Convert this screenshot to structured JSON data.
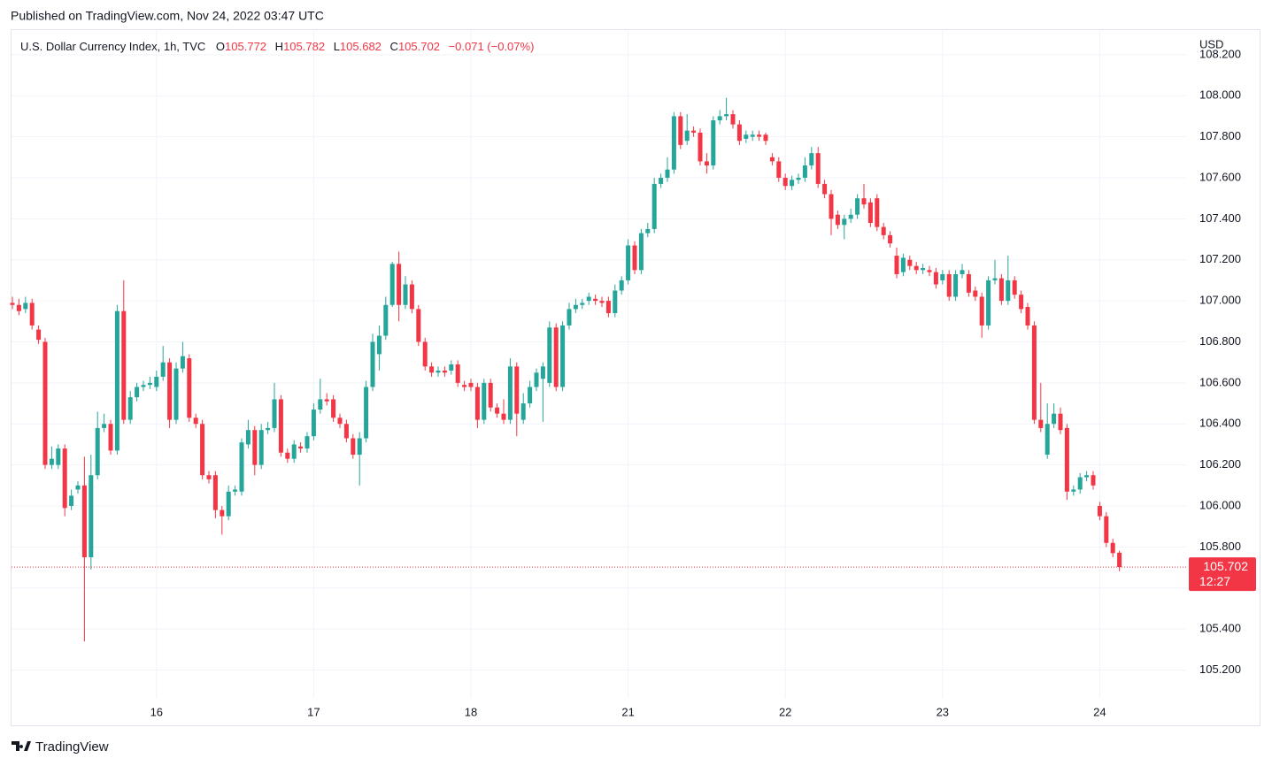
{
  "published": "Published on TradingView.com, Nov 24, 2022 03:47 UTC",
  "brand": "TradingView",
  "chart_data": {
    "type": "candlestick",
    "title": "U.S. Dollar Currency Index, 1h, TVC",
    "legend_fields": [
      {
        "label": "O",
        "value": 105.772
      },
      {
        "label": "H",
        "value": 105.782
      },
      {
        "label": "L",
        "value": 105.682
      },
      {
        "label": "C",
        "value": 105.702
      }
    ],
    "change": "−0.071 (−0.07%)",
    "currency": "USD",
    "last_price": 105.702,
    "countdown": "12:27",
    "up_color": "#26a69a",
    "down_color": "#f23645",
    "grid": true,
    "ylim": [
      105.06,
      108.32
    ],
    "yticks": [
      {
        "value": 105.2,
        "label": "105.200"
      },
      {
        "value": 105.4,
        "label": "105.400"
      },
      {
        "value": 105.6,
        "label": "105.600"
      },
      {
        "value": 105.8,
        "label": "105.800"
      },
      {
        "value": 106.0,
        "label": "106.000"
      },
      {
        "value": 106.2,
        "label": "106.200"
      },
      {
        "value": 106.4,
        "label": "106.400"
      },
      {
        "value": 106.6,
        "label": "106.600"
      },
      {
        "value": 106.8,
        "label": "106.800"
      },
      {
        "value": 107.0,
        "label": "107.000"
      },
      {
        "value": 107.2,
        "label": "107.200"
      },
      {
        "value": 107.4,
        "label": "107.400"
      },
      {
        "value": 107.6,
        "label": "107.600"
      },
      {
        "value": 107.8,
        "label": "107.800"
      },
      {
        "value": 108.0,
        "label": "108.000"
      },
      {
        "value": 108.2,
        "label": "108.200"
      }
    ],
    "categories": [
      null,
      null,
      null,
      null,
      null,
      null,
      null,
      null,
      null,
      null,
      null,
      null,
      null,
      null,
      null,
      null,
      null,
      null,
      null,
      null,
      null,
      null,
      "16",
      null,
      null,
      null,
      null,
      null,
      null,
      null,
      null,
      null,
      null,
      null,
      null,
      null,
      null,
      null,
      null,
      null,
      null,
      null,
      null,
      null,
      null,
      null,
      "17",
      null,
      null,
      null,
      null,
      null,
      null,
      null,
      null,
      null,
      null,
      null,
      null,
      null,
      null,
      null,
      null,
      null,
      null,
      null,
      null,
      null,
      null,
      null,
      "18",
      null,
      null,
      null,
      null,
      null,
      null,
      null,
      null,
      null,
      null,
      null,
      null,
      null,
      null,
      null,
      null,
      null,
      null,
      null,
      null,
      null,
      null,
      null,
      "21",
      null,
      null,
      null,
      null,
      null,
      null,
      null,
      null,
      null,
      null,
      null,
      null,
      null,
      null,
      null,
      null,
      null,
      null,
      null,
      null,
      null,
      null,
      null,
      "22",
      null,
      null,
      null,
      null,
      null,
      null,
      null,
      null,
      null,
      null,
      null,
      null,
      null,
      null,
      null,
      null,
      null,
      null,
      null,
      null,
      null,
      null,
      null,
      "23",
      null,
      null,
      null,
      null,
      null,
      null,
      null,
      null,
      null,
      null,
      null,
      null,
      null,
      null,
      null,
      null,
      null,
      null,
      null,
      null,
      null,
      null,
      null,
      "24",
      null,
      null,
      null
    ],
    "open": [
      106.99,
      106.98,
      106.96,
      106.99,
      106.86,
      106.8,
      106.2,
      106.2,
      106.28,
      106,
      106.08,
      106.1,
      105.75,
      106.15,
      106.38,
      106.4,
      106.27,
      106.95,
      106.42,
      106.53,
      106.58,
      106.59,
      106.58,
      106.63,
      106.7,
      106.42,
      106.67,
      106.72,
      106.43,
      106.4,
      106.15,
      106.15,
      105.98,
      105.95,
      106.07,
      106.07,
      106.3,
      106.37,
      106.2,
      106.37,
      106.38,
      106.52,
      106.26,
      106.23,
      106.29,
      106.28,
      106.34,
      106.47,
      106.52,
      106.52,
      106.43,
      106.4,
      106.33,
      106.25,
      106.33,
      106.58,
      106.74,
      106.83,
      106.98,
      107.18,
      106.98,
      107.08,
      106.96,
      106.8,
      106.68,
      106.65,
      106.66,
      106.66,
      106.69,
      106.59,
      106.6,
      106.58,
      106.42,
      106.6,
      106.48,
      106.45,
      106.42,
      106.68,
      106.42,
      106.5,
      106.58,
      106.62,
      106.6,
      106.87,
      106.58,
      106.88,
      106.96,
      106.98,
      107,
      107.01,
      107,
      107,
      106.94,
      107.05,
      107.1,
      107.27,
      107.15,
      107.33,
      107.35,
      107.57,
      107.6,
      107.64,
      107.9,
      107.78,
      107.83,
      107.82,
      107.68,
      107.66,
      107.88,
      107.9,
      107.91,
      107.86,
      107.79,
      107.8,
      107.81,
      107.81,
      107.7,
      107.68,
      107.6,
      107.56,
      107.59,
      107.6,
      107.66,
      107.72,
      107.57,
      107.52,
      107.42,
      107.37,
      107.4,
      107.42,
      107.5,
      107.48,
      107.5,
      107.36,
      107.32,
      107.22,
      107.14,
      107.2,
      107.17,
      107.15,
      107.15,
      107.14,
      107.1,
      107.13,
      107.02,
      107.13,
      107.13,
      107.05,
      107.02,
      106.88,
      107.1,
      107.11,
      107,
      107.1,
      107.03,
      106.97,
      106.88,
      106.42,
      106.25,
      106.4,
      106.45,
      106.38,
      106.07,
      106.08,
      106.14,
      106.15,
      106,
      105.95,
      105.82,
      105.772
    ],
    "high": [
      107.02,
      107.01,
      107.02,
      107.01,
      106.88,
      106.82,
      106.29,
      106.3,
      106.3,
      106.08,
      106.12,
      106.24,
      106.25,
      106.46,
      106.45,
      106.42,
      106.98,
      107.1,
      106.56,
      106.6,
      106.61,
      106.63,
      106.66,
      106.78,
      106.72,
      106.7,
      106.8,
      106.74,
      106.45,
      106.42,
      106.17,
      106.17,
      106,
      106.1,
      106.1,
      106.33,
      106.42,
      106.39,
      106.4,
      106.41,
      106.6,
      106.54,
      106.28,
      106.32,
      106.31,
      106.36,
      106.5,
      106.62,
      106.55,
      106.54,
      106.45,
      106.42,
      106.35,
      106.36,
      106.61,
      106.84,
      106.88,
      107.02,
      107.19,
      107.24,
      107.12,
      107.1,
      106.98,
      106.82,
      106.7,
      106.68,
      106.68,
      106.71,
      106.71,
      106.61,
      106.62,
      106.6,
      106.62,
      106.62,
      106.5,
      106.52,
      106.72,
      106.7,
      106.55,
      106.61,
      106.67,
      106.7,
      106.9,
      106.89,
      106.9,
      106.99,
      107.01,
      107.01,
      107.04,
      107.03,
      107.02,
      107.02,
      107.08,
      107.12,
      107.3,
      107.29,
      107.35,
      107.38,
      107.6,
      107.62,
      107.7,
      107.92,
      107.92,
      107.91,
      107.85,
      107.84,
      107.72,
      107.9,
      107.93,
      107.99,
      107.93,
      107.88,
      107.83,
      107.83,
      107.83,
      107.82,
      107.72,
      107.7,
      107.62,
      107.61,
      107.62,
      107.7,
      107.75,
      107.75,
      107.59,
      107.54,
      107.44,
      107.42,
      107.45,
      107.52,
      107.57,
      107.5,
      107.52,
      107.38,
      107.34,
      107.26,
      107.23,
      107.22,
      107.19,
      107.18,
      107.17,
      107.16,
      107.15,
      107.15,
      107.15,
      107.18,
      107.15,
      107.07,
      107.04,
      107.12,
      107.2,
      107.13,
      107.22,
      107.12,
      107.05,
      106.99,
      106.9,
      106.6,
      106.5,
      106.5,
      106.48,
      106.4,
      106.1,
      106.16,
      106.17,
      106.17,
      106.02,
      105.97,
      105.84,
      105.782
    ],
    "low": [
      106.96,
      106.93,
      106.94,
      106.86,
      106.79,
      106.18,
      106.18,
      106.18,
      105.95,
      105.98,
      106.06,
      105.34,
      105.69,
      106.13,
      106.36,
      106.25,
      106.25,
      106.4,
      106.4,
      106.51,
      106.56,
      106.57,
      106.56,
      106.61,
      106.38,
      106.4,
      106.65,
      106.41,
      106.38,
      106.13,
      106.11,
      105.94,
      105.86,
      105.93,
      106.05,
      106.05,
      106.28,
      106.15,
      106.18,
      106.35,
      106.36,
      106.24,
      106.21,
      106.21,
      106.26,
      106.26,
      106.32,
      106.45,
      106.49,
      106.41,
      106.38,
      106.31,
      106.23,
      106.1,
      106.31,
      106.56,
      106.66,
      106.81,
      106.97,
      106.9,
      106.96,
      106.94,
      106.78,
      106.66,
      106.63,
      106.63,
      106.63,
      106.64,
      106.58,
      106.56,
      106.56,
      106.38,
      106.4,
      106.46,
      106.43,
      106.4,
      106.4,
      106.34,
      106.4,
      106.48,
      106.56,
      106.41,
      106.58,
      106.56,
      106.56,
      106.86,
      106.94,
      106.96,
      106.98,
      106.98,
      106.97,
      106.92,
      106.92,
      107.03,
      107.08,
      107.13,
      107.13,
      107.31,
      107.33,
      107.55,
      107.58,
      107.62,
      107.74,
      107.76,
      107.8,
      107.66,
      107.62,
      107.64,
      107.86,
      107.88,
      107.84,
      107.76,
      107.77,
      107.78,
      107.78,
      107.76,
      107.66,
      107.58,
      107.54,
      107.54,
      107.57,
      107.58,
      107.64,
      107.55,
      107.5,
      107.32,
      107.35,
      107.3,
      107.38,
      107.4,
      107.45,
      107.36,
      107.34,
      107.3,
      107.26,
      107.11,
      107.12,
      107.15,
      107.13,
      107.13,
      107.12,
      107.06,
      107.08,
      107,
      107,
      107.11,
      107.02,
      107,
      106.82,
      106.86,
      107.08,
      106.98,
      106.98,
      107.01,
      106.94,
      106.86,
      106.4,
      106.36,
      106.23,
      106.38,
      106.35,
      106.03,
      106.05,
      106.06,
      106.12,
      106.08,
      105.93,
      105.8,
      105.75,
      105.682
    ],
    "close": [
      106.98,
      106.95,
      106.99,
      106.88,
      106.81,
      106.2,
      106.23,
      106.28,
      105.99,
      106.05,
      106.1,
      105.75,
      106.15,
      106.38,
      106.4,
      106.27,
      106.95,
      106.42,
      106.53,
      106.58,
      106.59,
      106.6,
      106.63,
      106.7,
      106.42,
      106.67,
      106.73,
      106.43,
      106.4,
      106.15,
      106.13,
      105.98,
      105.95,
      106.07,
      106.08,
      106.31,
      106.37,
      106.2,
      106.37,
      106.38,
      106.52,
      106.26,
      106.23,
      106.3,
      106.28,
      106.34,
      106.47,
      106.52,
      106.51,
      106.43,
      106.4,
      106.33,
      106.25,
      106.33,
      106.58,
      106.8,
      106.83,
      106.98,
      107.18,
      106.98,
      107.08,
      106.96,
      106.8,
      106.68,
      106.65,
      106.66,
      106.65,
      106.69,
      106.6,
      106.58,
      106.58,
      106.42,
      106.6,
      106.48,
      106.45,
      106.42,
      106.68,
      106.45,
      106.5,
      106.58,
      106.65,
      106.68,
      106.87,
      106.58,
      106.88,
      106.96,
      106.98,
      106.99,
      107.02,
      107,
      106.99,
      106.94,
      107.05,
      107.1,
      107.27,
      107.15,
      107.33,
      107.35,
      107.57,
      107.6,
      107.64,
      107.9,
      107.76,
      107.83,
      107.82,
      107.68,
      107.66,
      107.88,
      107.9,
      107.91,
      107.86,
      107.78,
      107.81,
      107.81,
      107.8,
      107.78,
      107.68,
      107.6,
      107.56,
      107.59,
      107.6,
      107.66,
      107.72,
      107.57,
      107.52,
      107.4,
      107.37,
      107.4,
      107.42,
      107.5,
      107.47,
      107.38,
      107.36,
      107.32,
      107.28,
      107.13,
      107.21,
      107.17,
      107.15,
      107.16,
      107.14,
      107.08,
      107.13,
      107.02,
      107.13,
      107.15,
      107.04,
      107.02,
      106.88,
      107.1,
      107.11,
      107,
      107.1,
      107.03,
      106.96,
      106.88,
      106.42,
      106.38,
      106.4,
      106.45,
      106.37,
      106.07,
      106.08,
      106.14,
      106.15,
      106.1,
      105.95,
      105.82,
      105.77,
      105.702
    ]
  }
}
